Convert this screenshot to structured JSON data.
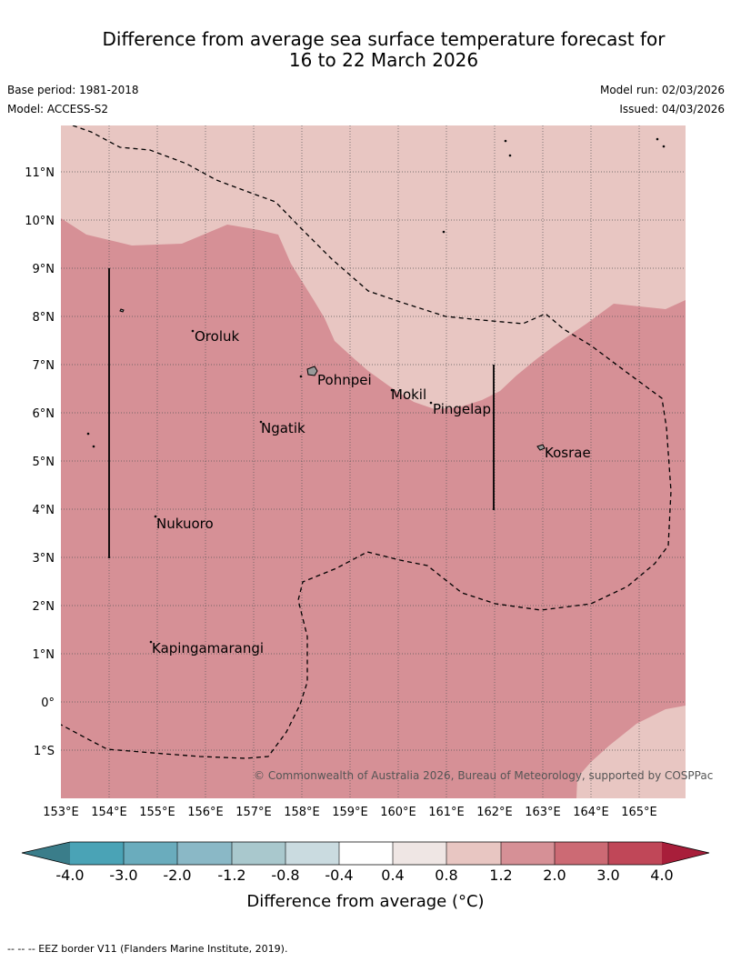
{
  "title": {
    "line1": "Difference from average sea surface temperature forecast for",
    "line2": "16 to 22 March 2026"
  },
  "info": {
    "base_period": "Base period: 1981-2018",
    "model": "Model: ACCESS-S2",
    "model_run": "Model run: 02/03/2026",
    "issued": "Issued: 04/03/2026"
  },
  "map": {
    "lon_ticks": [
      "153°E",
      "154°E",
      "155°E",
      "156°E",
      "157°E",
      "158°E",
      "159°E",
      "160°E",
      "161°E",
      "162°E",
      "163°E",
      "164°E",
      "165°E"
    ],
    "lat_ticks": [
      "11°N",
      "10°N",
      "9°N",
      "8°N",
      "7°N",
      "6°N",
      "5°N",
      "4°N",
      "3°N",
      "2°N",
      "1°N",
      "0°",
      "1°S"
    ],
    "places": [
      "Oroluk",
      "Pohnpei",
      "Mokil",
      "Pingelap",
      "Ngatik",
      "Kosrae",
      "Nukuoro",
      "Kapingamarangi"
    ],
    "copyright": "© Commonwealth of Australia 2026, Bureau of Meteorology, supported by COSPPac",
    "zone_colors": {
      "band_0_8_1_2": "#e8c6c2",
      "band_1_2_2_0": "#d69096"
    }
  },
  "legend": {
    "tick_labels": [
      "-4.0",
      "-3.0",
      "-2.0",
      "-1.2",
      "-0.8",
      "-0.4",
      "0.4",
      "0.8",
      "1.2",
      "2.0",
      "3.0",
      "4.0"
    ],
    "colors": [
      "#3a7d8a",
      "#4aa3b6",
      "#6aacbd",
      "#8ab8c6",
      "#a9c8cd",
      "#cadbe0",
      "#ffffff",
      "#efe6e4",
      "#e8c6c2",
      "#d69096",
      "#cc6a74",
      "#c04758",
      "#a81e3a"
    ],
    "label": "Difference from average (°C)"
  },
  "footer": {
    "eez_note": "--  --  -- EEZ border V11 (Flanders Marine Institute, 2019)."
  }
}
